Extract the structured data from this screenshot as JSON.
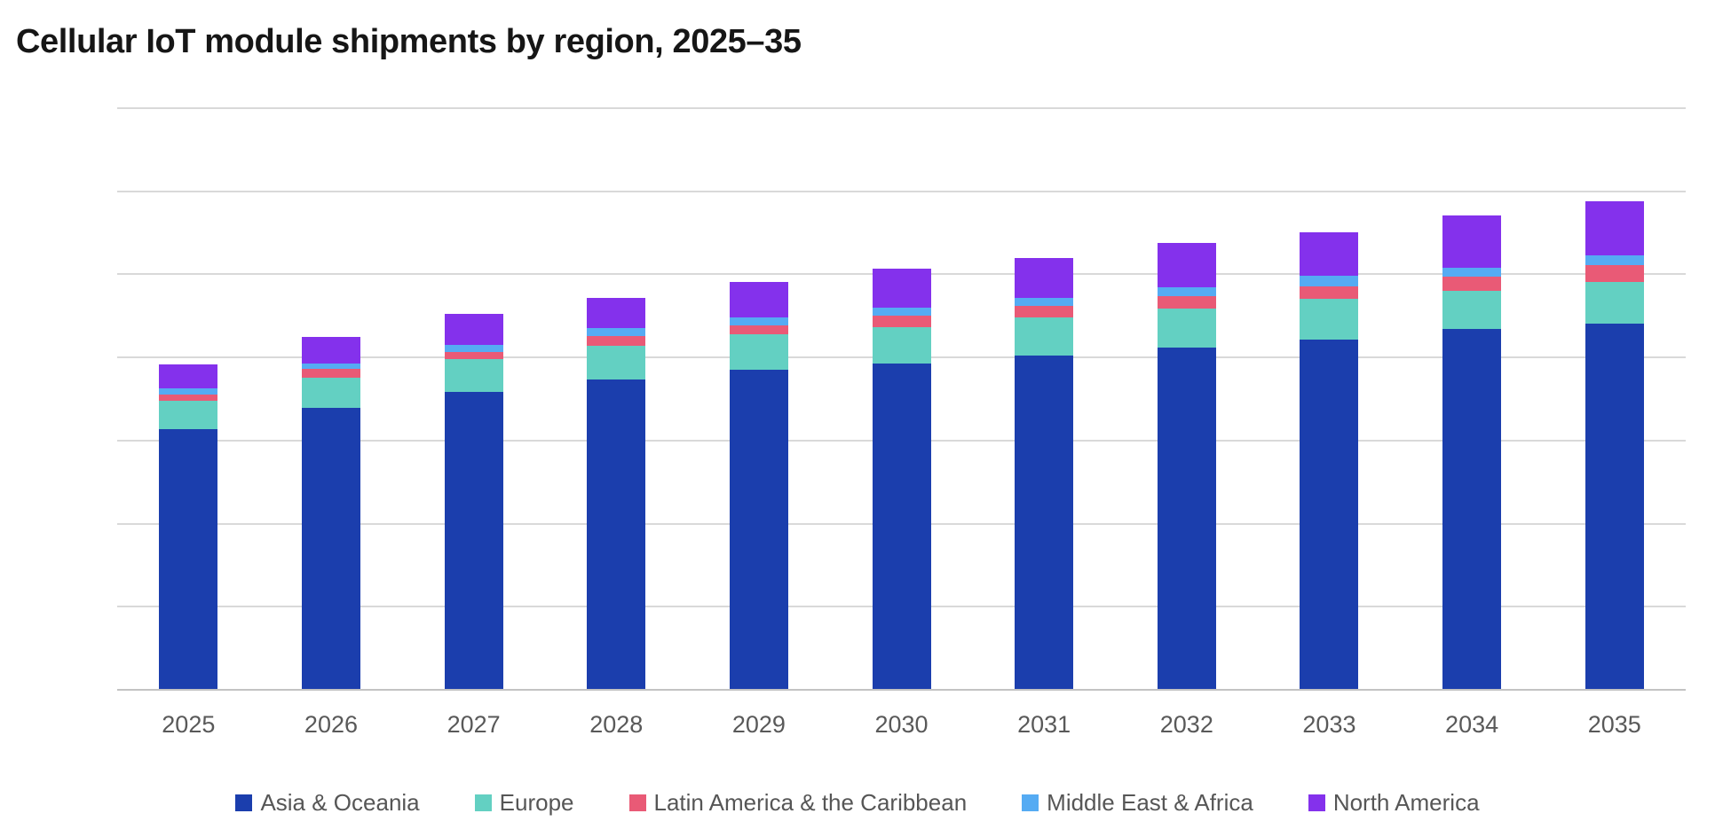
{
  "title": "Cellular IoT module shipments by region, 2025–35",
  "colors": {
    "asia_oceania": "#1b3ead",
    "europe": "#63d0c2",
    "latin_america_caribbean": "#e95a76",
    "middle_east_africa": "#55abf3",
    "north_america": "#8431ec",
    "gridline": "#d9d9d9",
    "axis_line": "#c3c3c3",
    "label_text": "#595959",
    "title_text": "#161616"
  },
  "chart_data": {
    "type": "bar",
    "stacked": true,
    "title": "Cellular IoT module shipments by region, 2025–35",
    "categories": [
      "2025",
      "2026",
      "2027",
      "2028",
      "2029",
      "2030",
      "2031",
      "2032",
      "2033",
      "2034",
      "2035"
    ],
    "series": [
      {
        "name": "Asia & Oceania",
        "color": "#1b3ead",
        "values": [
          314,
          339,
          359,
          373,
          385,
          393,
          402,
          412,
          422,
          434,
          441
        ]
      },
      {
        "name": "Europe",
        "color": "#63d0c2",
        "values": [
          34,
          37,
          39,
          41,
          43,
          43,
          46,
          47,
          49,
          46,
          50
        ]
      },
      {
        "name": "Latin America & the Caribbean",
        "color": "#e95a76",
        "values": [
          7,
          10,
          9,
          12,
          11,
          14,
          14,
          15,
          15,
          17,
          20
        ]
      },
      {
        "name": "Middle East & Africa",
        "color": "#55abf3",
        "values": [
          8,
          7,
          8,
          9,
          9,
          10,
          10,
          10,
          12,
          11,
          12
        ]
      },
      {
        "name": "North America",
        "color": "#8431ec",
        "values": [
          29,
          32,
          38,
          37,
          43,
          47,
          48,
          54,
          53,
          63,
          65
        ]
      }
    ],
    "totals": [
      392,
      425,
      453,
      472,
      491,
      507,
      520,
      538,
      551,
      571,
      588
    ],
    "xlabel": "",
    "ylabel": "",
    "ylim": [
      0,
      700
    ],
    "gridline_interval": 100,
    "y_axis_labels_visible": false,
    "units": "relative units (no value axis labels shown; one gridline interval = 100)",
    "grid": true,
    "legend_position": "bottom"
  }
}
